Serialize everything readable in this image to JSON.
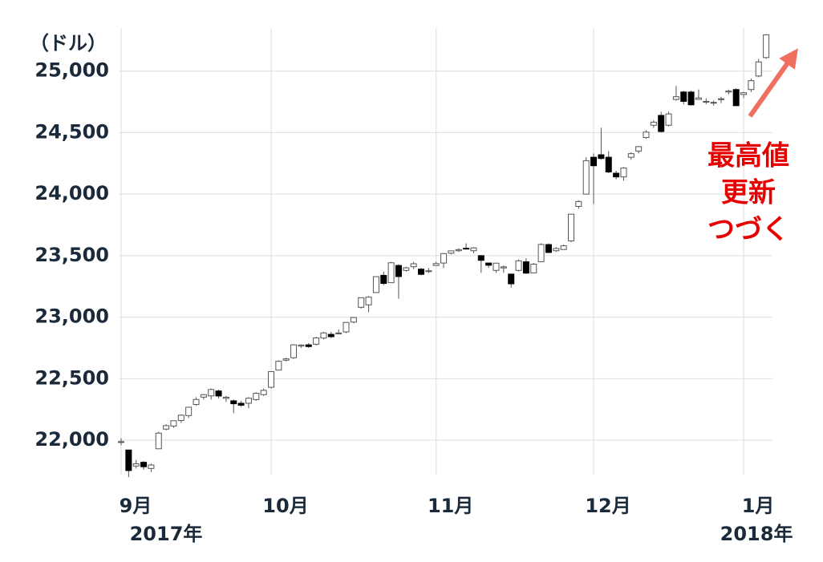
{
  "chart_data": {
    "type": "candlestick",
    "y_unit": "（ドル）",
    "start_year_label": "2017年",
    "end_year_label": "2018年",
    "annotation": [
      "最高値",
      "更新",
      "つづく"
    ],
    "up_color": "#ffffff",
    "down_color": "#000000",
    "edge_color": "#555555",
    "grid": true,
    "ylim": [
      21720,
      25350
    ],
    "yticks": [
      {
        "value": 22000,
        "label": "22,000"
      },
      {
        "value": 22500,
        "label": "22,500"
      },
      {
        "value": 23000,
        "label": "23,000"
      },
      {
        "value": 23500,
        "label": "23,500"
      },
      {
        "value": 24000,
        "label": "24,000"
      },
      {
        "value": 24500,
        "label": "24,500"
      },
      {
        "value": 25000,
        "label": "25,000"
      }
    ],
    "categories": [
      "9月",
      null,
      null,
      null,
      null,
      null,
      null,
      null,
      null,
      null,
      null,
      null,
      null,
      null,
      null,
      null,
      null,
      null,
      null,
      null,
      "10月",
      null,
      null,
      null,
      null,
      null,
      null,
      null,
      null,
      null,
      null,
      null,
      null,
      null,
      null,
      null,
      null,
      null,
      null,
      null,
      null,
      null,
      "11月",
      null,
      null,
      null,
      null,
      null,
      null,
      null,
      null,
      null,
      null,
      null,
      null,
      null,
      null,
      null,
      null,
      null,
      null,
      null,
      null,
      "12月",
      null,
      null,
      null,
      null,
      null,
      null,
      null,
      null,
      null,
      null,
      null,
      null,
      null,
      null,
      null,
      null,
      null,
      null,
      null,
      "1月",
      null,
      null,
      null
    ],
    "open": [
      21982,
      21920,
      21790,
      21820,
      21770,
      21930,
      22090,
      22115,
      22160,
      22200,
      22290,
      22350,
      22360,
      22400,
      22340,
      22320,
      22300,
      22300,
      22330,
      22370,
      22430,
      22570,
      22650,
      22670,
      22765,
      22775,
      22780,
      22830,
      22860,
      22870,
      22880,
      22960,
      23080,
      23100,
      23200,
      23340,
      23280,
      23420,
      23380,
      23410,
      23390,
      23370,
      23420,
      23440,
      23520,
      23540,
      23560,
      23540,
      23500,
      23440,
      23380,
      23400,
      23350,
      23380,
      23450,
      23360,
      23450,
      23590,
      23540,
      23550,
      23620,
      23900,
      24000,
      24300,
      24320,
      24300,
      24170,
      24140,
      24300,
      24350,
      24460,
      24560,
      24640,
      24560,
      24770,
      24830,
      24830,
      24770,
      24750,
      24740,
      24770,
      24830,
      24850,
      24810,
      24850,
      24960,
      25110
    ],
    "high": [
      22015,
      21920,
      21840,
      21830,
      21810,
      22070,
      22130,
      22160,
      22210,
      22270,
      22350,
      22375,
      22420,
      22410,
      22360,
      22330,
      22320,
      22350,
      22390,
      22420,
      22560,
      22650,
      22670,
      22780,
      22780,
      22790,
      22840,
      22880,
      22880,
      22900,
      22960,
      23000,
      23160,
      23170,
      23330,
      23370,
      23450,
      23430,
      23410,
      23450,
      23400,
      23400,
      23450,
      23520,
      23540,
      23560,
      23600,
      23570,
      23500,
      23440,
      23440,
      23420,
      23350,
      23470,
      23480,
      23440,
      23600,
      23600,
      23570,
      23590,
      23840,
      23950,
      24300,
      24330,
      24540,
      24350,
      24190,
      24220,
      24340,
      24390,
      24520,
      24600,
      24670,
      24670,
      24880,
      24840,
      24840,
      24850,
      24780,
      24760,
      24790,
      24850,
      24860,
      24830,
      24940,
      25100,
      25300
    ],
    "low": [
      21958,
      21700,
      21770,
      21760,
      21740,
      21930,
      22080,
      22100,
      22140,
      22180,
      22280,
      22330,
      22330,
      22340,
      22310,
      22220,
      22270,
      22260,
      22320,
      22360,
      22420,
      22570,
      22640,
      22660,
      22750,
      22750,
      22770,
      22820,
      22830,
      22860,
      22870,
      22950,
      23070,
      23040,
      23200,
      23260,
      23280,
      23150,
      23370,
      23390,
      23340,
      23360,
      23420,
      23400,
      23510,
      23530,
      23550,
      23520,
      23360,
      23400,
      23360,
      23360,
      23240,
      23370,
      23350,
      23360,
      23450,
      23520,
      23530,
      23550,
      23610,
      23880,
      24000,
      23920,
      24280,
      24170,
      24120,
      24110,
      24280,
      24330,
      24450,
      24540,
      24500,
      24550,
      24760,
      24730,
      24720,
      24770,
      24730,
      24720,
      24740,
      24810,
      24720,
      24780,
      24830,
      24950,
      25100
    ],
    "close": [
      21988,
      21753,
      21808,
      21784,
      21798,
      22057,
      22118,
      22158,
      22203,
      22268,
      22331,
      22370,
      22412,
      22359,
      22349,
      22296,
      22284,
      22341,
      22381,
      22405,
      22557,
      22641,
      22661,
      22775,
      22773,
      22761,
      22831,
      22872,
      22841,
      22871,
      22957,
      22997,
      23158,
      23163,
      23329,
      23274,
      23442,
      23330,
      23401,
      23434,
      23348,
      23377,
      23435,
      23517,
      23539,
      23549,
      23557,
      23563,
      23462,
      23422,
      23439,
      23409,
      23271,
      23458,
      23358,
      23431,
      23591,
      23526,
      23558,
      23580,
      23837,
      23940,
      24272,
      24231,
      24290,
      24180,
      24140,
      24212,
      24329,
      24386,
      24504,
      24585,
      24509,
      24652,
      24792,
      24754,
      24726,
      24782,
      24754,
      24746,
      24775,
      24838,
      24719,
      24824,
      24922,
      25075,
      25295
    ]
  }
}
